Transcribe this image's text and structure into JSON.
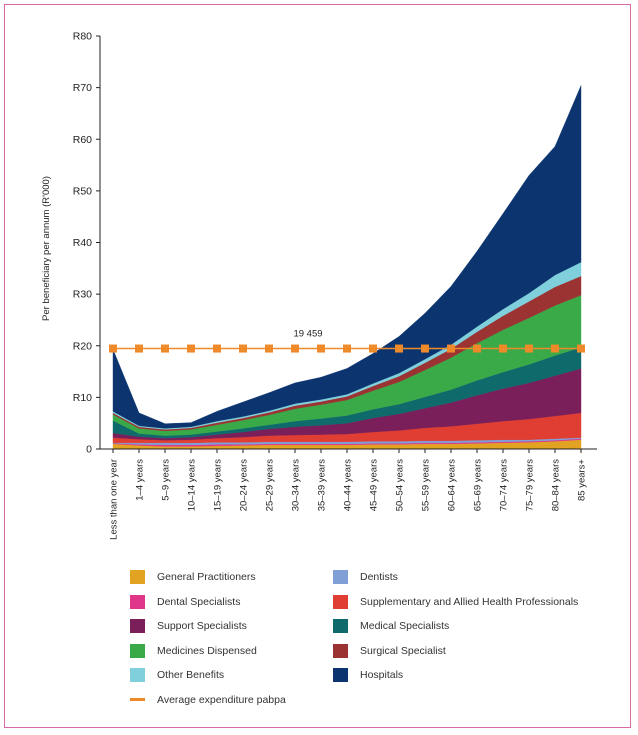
{
  "chart_data": {
    "type": "area",
    "stacked": true,
    "ylabel": "Per beneficiary per annum (R'000)",
    "xlabel": "",
    "ylim": [
      0,
      80
    ],
    "y_ticks": [
      0,
      10,
      20,
      30,
      40,
      50,
      60,
      70,
      80
    ],
    "y_tick_labels": [
      "0",
      "R10",
      "R20",
      "R30",
      "R40",
      "R50",
      "R60",
      "R70",
      "R80"
    ],
    "categories": [
      "Less than one year",
      "1–4 years",
      "5–9 years",
      "10–14 years",
      "15–19 years",
      "20–24 years",
      "25–29 years",
      "30–34 years",
      "35–39 years",
      "40–44 years",
      "45–49 years",
      "50–54 years",
      "55–59 years",
      "60–64 years",
      "65–69 years",
      "70–74 years",
      "75–79 years",
      "80–84 years",
      "85 years+"
    ],
    "series": [
      {
        "name": "General Practitioners",
        "color": "#e3a322",
        "values": [
          1.0,
          0.7,
          0.5,
          0.5,
          0.6,
          0.7,
          0.8,
          0.8,
          0.8,
          0.8,
          0.9,
          0.9,
          1.0,
          1.0,
          1.1,
          1.2,
          1.3,
          1.5,
          1.8
        ]
      },
      {
        "name": "Dental Specialists",
        "color": "#e0368a",
        "values": [
          0.1,
          0.2,
          0.3,
          0.3,
          0.3,
          0.2,
          0.2,
          0.2,
          0.2,
          0.2,
          0.2,
          0.2,
          0.2,
          0.2,
          0.2,
          0.2,
          0.2,
          0.2,
          0.2
        ]
      },
      {
        "name": "Dentists",
        "color": "#7f9fd6",
        "values": [
          0.1,
          0.3,
          0.4,
          0.4,
          0.4,
          0.4,
          0.4,
          0.4,
          0.4,
          0.4,
          0.4,
          0.4,
          0.4,
          0.4,
          0.4,
          0.4,
          0.3,
          0.3,
          0.2
        ]
      },
      {
        "name": "Supplementary and Allied Health Professionals",
        "color": "#e03e33",
        "values": [
          1.0,
          0.7,
          0.5,
          0.6,
          0.8,
          1.0,
          1.2,
          1.3,
          1.4,
          1.5,
          1.8,
          2.1,
          2.5,
          2.8,
          3.2,
          3.6,
          4.0,
          4.4,
          4.8
        ]
      },
      {
        "name": "Support Specialists",
        "color": "#7b1f5a",
        "values": [
          0.9,
          0.5,
          0.4,
          0.5,
          0.7,
          1.0,
          1.3,
          1.6,
          1.8,
          2.1,
          2.7,
          3.2,
          3.8,
          4.6,
          5.5,
          6.3,
          7.0,
          7.8,
          8.6
        ]
      },
      {
        "name": "Medical Specialists",
        "color": "#0f6a6c",
        "values": [
          2.4,
          0.6,
          0.5,
          0.5,
          0.6,
          0.7,
          0.8,
          1.1,
          1.3,
          1.5,
          1.7,
          1.9,
          2.2,
          2.5,
          2.9,
          3.2,
          3.6,
          3.9,
          4.1
        ]
      },
      {
        "name": "Medicines Dispensed",
        "color": "#3aaa48",
        "values": [
          1.2,
          1.0,
          0.9,
          1.0,
          1.3,
          1.6,
          1.9,
          2.4,
          2.7,
          3.0,
          3.6,
          4.3,
          5.2,
          6.2,
          7.2,
          8.2,
          9.0,
          9.7,
          10.1
        ]
      },
      {
        "name": "Surgical Specialist",
        "color": "#9b3333",
        "values": [
          0.3,
          0.3,
          0.3,
          0.3,
          0.4,
          0.4,
          0.5,
          0.6,
          0.6,
          0.7,
          0.9,
          1.1,
          1.4,
          1.7,
          2.2,
          2.7,
          3.2,
          3.6,
          3.7
        ]
      },
      {
        "name": "Other Benefits",
        "color": "#7fd0dc",
        "values": [
          0.3,
          0.2,
          0.2,
          0.2,
          0.3,
          0.3,
          0.3,
          0.4,
          0.4,
          0.4,
          0.5,
          0.6,
          0.7,
          0.8,
          1.0,
          1.3,
          1.6,
          2.3,
          2.7
        ]
      },
      {
        "name": "Hospitals",
        "color": "#0c3570",
        "values": [
          12.0,
          2.5,
          0.9,
          0.8,
          1.9,
          2.8,
          3.5,
          4.0,
          4.3,
          5.0,
          5.8,
          7.1,
          8.9,
          11.3,
          14.6,
          18.5,
          22.8,
          24.9,
          34.2
        ]
      }
    ],
    "average_line": {
      "name": "Average expenditure pabpa",
      "label": "19 459",
      "value": 19.459,
      "color": "#ef8a2a"
    },
    "legend_position": "bottom"
  },
  "legend": {
    "left": [
      "General Practitioners",
      "Dental Specialists",
      "Support Specialists",
      "Medicines Dispensed",
      "Other Benefits",
      "Average expenditure pabpa"
    ],
    "right": [
      "Dentists",
      "Supplementary and Allied Health Professionals",
      "Medical Specialists",
      "Surgical Specialist",
      "Hospitals"
    ]
  }
}
